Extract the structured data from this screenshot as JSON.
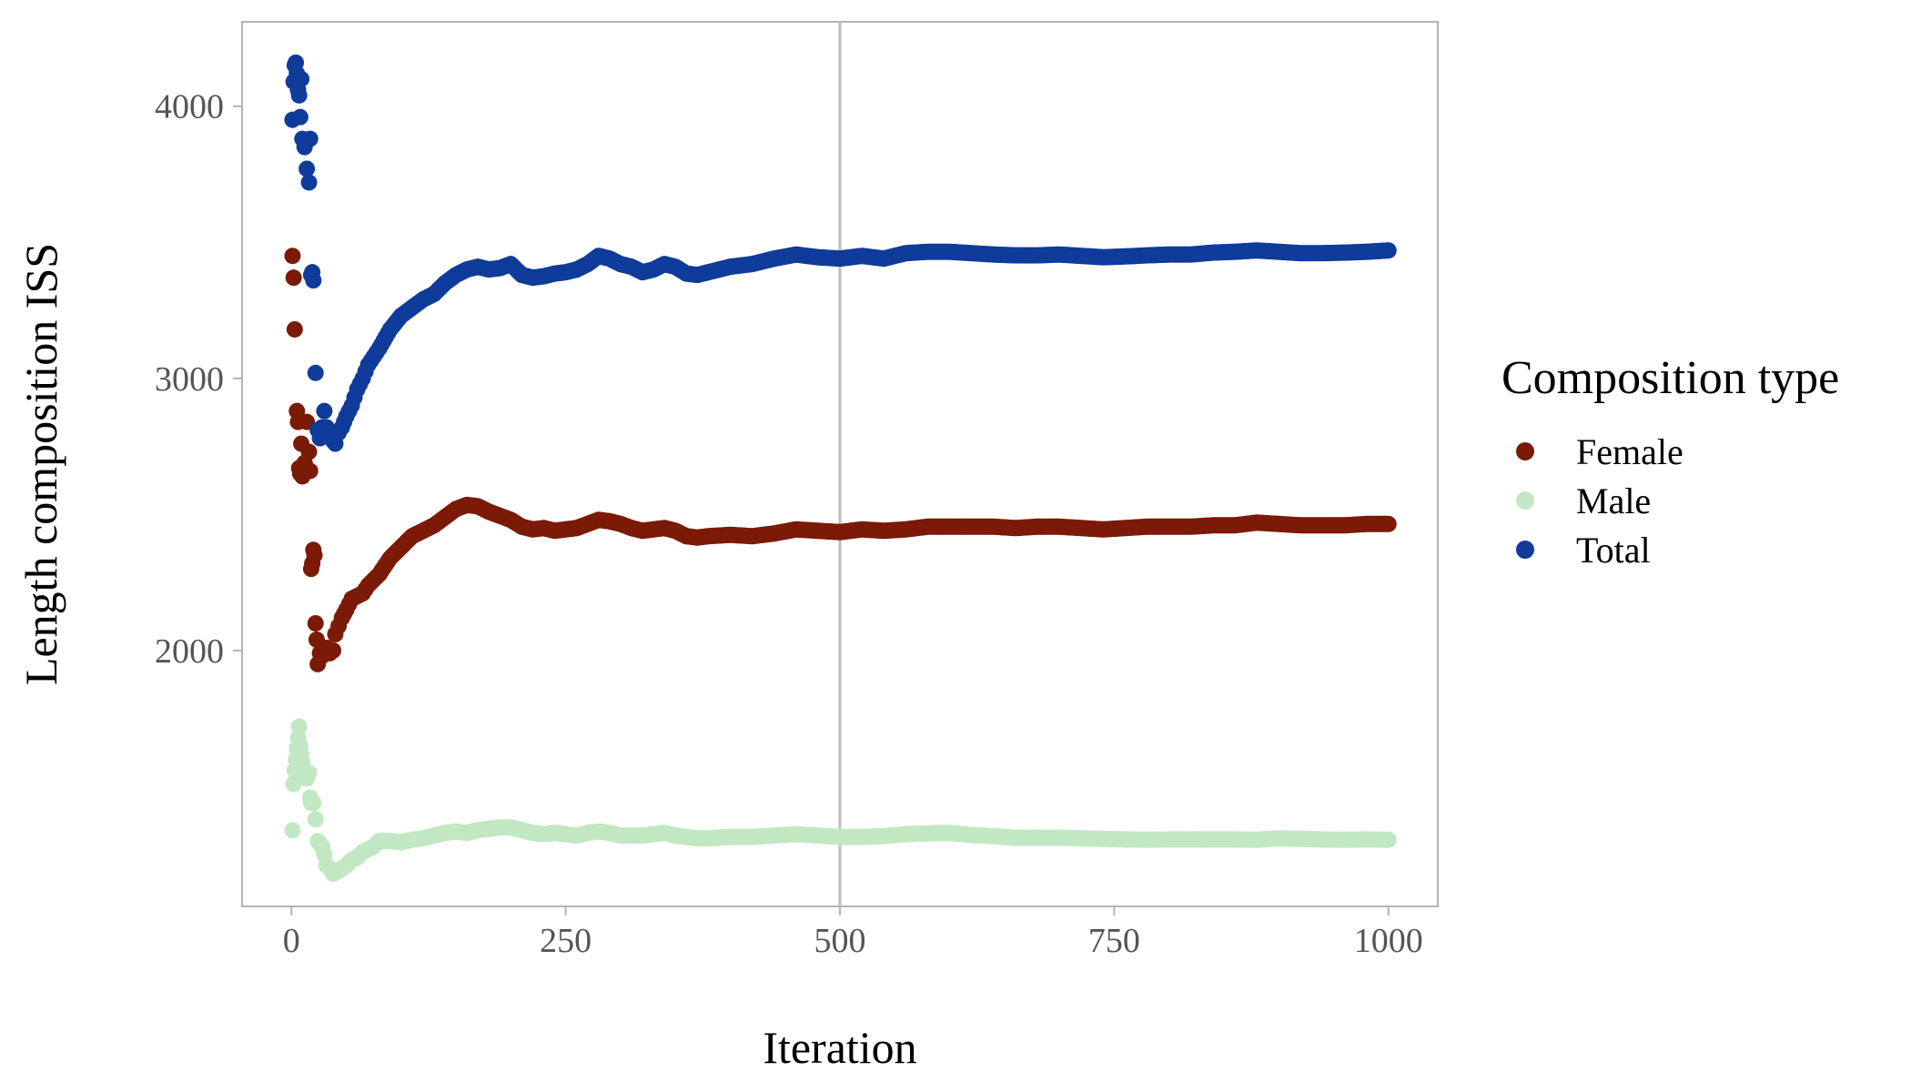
{
  "chart_data": {
    "type": "scatter",
    "title": "",
    "xlabel": "Iteration",
    "ylabel": "Length composition ISS",
    "xlim": [
      -45,
      1045
    ],
    "ylim": [
      1060,
      4310
    ],
    "x_ticks": [
      0,
      250,
      500,
      750,
      1000
    ],
    "x_tick_labels": [
      "0",
      "250",
      "500",
      "750",
      "1000"
    ],
    "y_ticks": [
      2000,
      3000,
      4000
    ],
    "y_tick_labels": [
      "2000",
      "3000",
      "4000"
    ],
    "vline_x": 500,
    "grid": false,
    "legend": {
      "title": "Composition type",
      "position": "right"
    },
    "series": [
      {
        "name": "Female",
        "color": "#7a1a07",
        "points": [
          [
            1,
            3450
          ],
          [
            2,
            3370
          ],
          [
            3,
            3180
          ],
          [
            5,
            2880
          ],
          [
            6,
            2840
          ],
          [
            7,
            2670
          ],
          [
            8,
            2650
          ],
          [
            9,
            2760
          ],
          [
            10,
            2640
          ],
          [
            12,
            2690
          ],
          [
            14,
            2840
          ],
          [
            16,
            2730
          ],
          [
            17,
            2660
          ],
          [
            18,
            2300
          ],
          [
            19,
            2320
          ],
          [
            20,
            2370
          ],
          [
            21,
            2350
          ],
          [
            22,
            2100
          ],
          [
            23,
            2040
          ],
          [
            24,
            1950
          ],
          [
            26,
            1990
          ],
          [
            28,
            1980
          ],
          [
            30,
            2000
          ],
          [
            32,
            2010
          ],
          [
            35,
            1990
          ],
          [
            38,
            2000
          ],
          [
            40,
            2060
          ],
          [
            43,
            2090
          ],
          [
            46,
            2120
          ],
          [
            50,
            2150
          ],
          [
            55,
            2190
          ],
          [
            60,
            2200
          ],
          [
            65,
            2210
          ],
          [
            70,
            2240
          ],
          [
            75,
            2260
          ],
          [
            80,
            2280
          ],
          [
            90,
            2340
          ],
          [
            100,
            2380
          ],
          [
            110,
            2420
          ],
          [
            120,
            2440
          ],
          [
            130,
            2460
          ],
          [
            140,
            2490
          ],
          [
            150,
            2520
          ],
          [
            160,
            2535
          ],
          [
            170,
            2530
          ],
          [
            180,
            2510
          ],
          [
            190,
            2495
          ],
          [
            200,
            2480
          ],
          [
            210,
            2455
          ],
          [
            220,
            2445
          ],
          [
            230,
            2450
          ],
          [
            240,
            2440
          ],
          [
            250,
            2445
          ],
          [
            260,
            2450
          ],
          [
            270,
            2465
          ],
          [
            280,
            2480
          ],
          [
            290,
            2475
          ],
          [
            300,
            2465
          ],
          [
            310,
            2450
          ],
          [
            320,
            2440
          ],
          [
            330,
            2445
          ],
          [
            340,
            2450
          ],
          [
            350,
            2440
          ],
          [
            360,
            2420
          ],
          [
            370,
            2415
          ],
          [
            380,
            2420
          ],
          [
            400,
            2425
          ],
          [
            420,
            2420
          ],
          [
            440,
            2430
          ],
          [
            460,
            2445
          ],
          [
            480,
            2440
          ],
          [
            500,
            2435
          ],
          [
            520,
            2445
          ],
          [
            540,
            2440
          ],
          [
            560,
            2445
          ],
          [
            580,
            2455
          ],
          [
            600,
            2455
          ],
          [
            620,
            2455
          ],
          [
            640,
            2455
          ],
          [
            660,
            2450
          ],
          [
            680,
            2455
          ],
          [
            700,
            2455
          ],
          [
            720,
            2450
          ],
          [
            740,
            2445
          ],
          [
            760,
            2450
          ],
          [
            780,
            2455
          ],
          [
            800,
            2455
          ],
          [
            820,
            2455
          ],
          [
            840,
            2460
          ],
          [
            860,
            2460
          ],
          [
            880,
            2470
          ],
          [
            900,
            2465
          ],
          [
            920,
            2460
          ],
          [
            940,
            2460
          ],
          [
            960,
            2460
          ],
          [
            980,
            2465
          ],
          [
            1000,
            2465
          ]
        ]
      },
      {
        "name": "Male",
        "color": "#c2e8c3",
        "points": [
          [
            1,
            1340
          ],
          [
            2,
            1510
          ],
          [
            3,
            1560
          ],
          [
            4,
            1600
          ],
          [
            5,
            1640
          ],
          [
            6,
            1680
          ],
          [
            7,
            1720
          ],
          [
            8,
            1650
          ],
          [
            9,
            1620
          ],
          [
            10,
            1590
          ],
          [
            12,
            1560
          ],
          [
            14,
            1530
          ],
          [
            16,
            1550
          ],
          [
            17,
            1460
          ],
          [
            18,
            1440
          ],
          [
            20,
            1440
          ],
          [
            22,
            1380
          ],
          [
            24,
            1300
          ],
          [
            26,
            1290
          ],
          [
            28,
            1280
          ],
          [
            30,
            1250
          ],
          [
            32,
            1210
          ],
          [
            35,
            1200
          ],
          [
            38,
            1180
          ],
          [
            40,
            1190
          ],
          [
            43,
            1190
          ],
          [
            46,
            1200
          ],
          [
            50,
            1210
          ],
          [
            55,
            1230
          ],
          [
            60,
            1240
          ],
          [
            65,
            1260
          ],
          [
            70,
            1270
          ],
          [
            75,
            1280
          ],
          [
            80,
            1300
          ],
          [
            90,
            1300
          ],
          [
            100,
            1295
          ],
          [
            110,
            1305
          ],
          [
            120,
            1310
          ],
          [
            130,
            1320
          ],
          [
            140,
            1330
          ],
          [
            150,
            1335
          ],
          [
            160,
            1330
          ],
          [
            170,
            1340
          ],
          [
            180,
            1345
          ],
          [
            190,
            1350
          ],
          [
            200,
            1350
          ],
          [
            210,
            1340
          ],
          [
            220,
            1330
          ],
          [
            230,
            1325
          ],
          [
            240,
            1330
          ],
          [
            250,
            1325
          ],
          [
            260,
            1320
          ],
          [
            270,
            1330
          ],
          [
            280,
            1335
          ],
          [
            290,
            1330
          ],
          [
            300,
            1320
          ],
          [
            310,
            1320
          ],
          [
            320,
            1320
          ],
          [
            330,
            1325
          ],
          [
            340,
            1330
          ],
          [
            350,
            1320
          ],
          [
            360,
            1315
          ],
          [
            370,
            1310
          ],
          [
            380,
            1310
          ],
          [
            400,
            1315
          ],
          [
            420,
            1315
          ],
          [
            440,
            1320
          ],
          [
            460,
            1325
          ],
          [
            480,
            1320
          ],
          [
            500,
            1315
          ],
          [
            520,
            1315
          ],
          [
            540,
            1318
          ],
          [
            560,
            1325
          ],
          [
            580,
            1328
          ],
          [
            600,
            1330
          ],
          [
            620,
            1322
          ],
          [
            640,
            1318
          ],
          [
            660,
            1312
          ],
          [
            680,
            1312
          ],
          [
            700,
            1312
          ],
          [
            720,
            1310
          ],
          [
            740,
            1308
          ],
          [
            760,
            1306
          ],
          [
            780,
            1305
          ],
          [
            800,
            1306
          ],
          [
            820,
            1306
          ],
          [
            840,
            1306
          ],
          [
            860,
            1306
          ],
          [
            880,
            1305
          ],
          [
            900,
            1310
          ],
          [
            920,
            1308
          ],
          [
            940,
            1306
          ],
          [
            960,
            1305
          ],
          [
            980,
            1306
          ],
          [
            1000,
            1305
          ]
        ]
      },
      {
        "name": "Total",
        "color": "#0f3b9a",
        "points": [
          [
            1,
            3950
          ],
          [
            2,
            4090
          ],
          [
            3,
            4150
          ],
          [
            4,
            4160
          ],
          [
            5,
            4120
          ],
          [
            6,
            4060
          ],
          [
            7,
            4040
          ],
          [
            8,
            3960
          ],
          [
            9,
            4100
          ],
          [
            10,
            3880
          ],
          [
            12,
            3850
          ],
          [
            14,
            3770
          ],
          [
            16,
            3720
          ],
          [
            17,
            3880
          ],
          [
            18,
            3380
          ],
          [
            19,
            3390
          ],
          [
            20,
            3360
          ],
          [
            22,
            3020
          ],
          [
            24,
            2810
          ],
          [
            26,
            2780
          ],
          [
            28,
            2820
          ],
          [
            30,
            2880
          ],
          [
            32,
            2820
          ],
          [
            35,
            2790
          ],
          [
            38,
            2770
          ],
          [
            40,
            2760
          ],
          [
            43,
            2800
          ],
          [
            46,
            2820
          ],
          [
            50,
            2860
          ],
          [
            55,
            2900
          ],
          [
            60,
            2960
          ],
          [
            65,
            3000
          ],
          [
            70,
            3050
          ],
          [
            75,
            3080
          ],
          [
            80,
            3110
          ],
          [
            90,
            3180
          ],
          [
            100,
            3230
          ],
          [
            110,
            3260
          ],
          [
            120,
            3290
          ],
          [
            130,
            3310
          ],
          [
            140,
            3350
          ],
          [
            150,
            3380
          ],
          [
            160,
            3400
          ],
          [
            170,
            3410
          ],
          [
            180,
            3400
          ],
          [
            190,
            3405
          ],
          [
            200,
            3420
          ],
          [
            210,
            3380
          ],
          [
            220,
            3370
          ],
          [
            230,
            3375
          ],
          [
            240,
            3385
          ],
          [
            250,
            3390
          ],
          [
            260,
            3400
          ],
          [
            270,
            3420
          ],
          [
            280,
            3450
          ],
          [
            290,
            3440
          ],
          [
            300,
            3420
          ],
          [
            310,
            3410
          ],
          [
            320,
            3390
          ],
          [
            330,
            3400
          ],
          [
            340,
            3420
          ],
          [
            350,
            3410
          ],
          [
            360,
            3385
          ],
          [
            370,
            3380
          ],
          [
            380,
            3390
          ],
          [
            400,
            3410
          ],
          [
            420,
            3420
          ],
          [
            440,
            3440
          ],
          [
            460,
            3455
          ],
          [
            480,
            3445
          ],
          [
            500,
            3440
          ],
          [
            520,
            3450
          ],
          [
            540,
            3440
          ],
          [
            560,
            3460
          ],
          [
            580,
            3465
          ],
          [
            600,
            3465
          ],
          [
            620,
            3460
          ],
          [
            640,
            3455
          ],
          [
            660,
            3452
          ],
          [
            680,
            3452
          ],
          [
            700,
            3455
          ],
          [
            720,
            3450
          ],
          [
            740,
            3445
          ],
          [
            760,
            3448
          ],
          [
            780,
            3452
          ],
          [
            800,
            3455
          ],
          [
            820,
            3455
          ],
          [
            840,
            3462
          ],
          [
            860,
            3465
          ],
          [
            880,
            3470
          ],
          [
            900,
            3465
          ],
          [
            920,
            3460
          ],
          [
            940,
            3460
          ],
          [
            960,
            3462
          ],
          [
            980,
            3465
          ],
          [
            1000,
            3470
          ]
        ]
      }
    ]
  }
}
